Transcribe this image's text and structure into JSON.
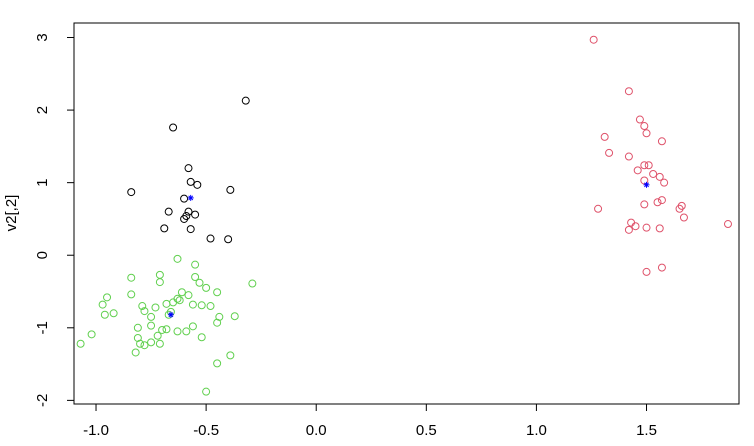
{
  "chart_data": {
    "type": "scatter",
    "title": "",
    "xlabel": "",
    "ylabel": "v2[,2]",
    "xlim": [
      -1.1,
      1.92
    ],
    "ylim": [
      -2.05,
      3.2
    ],
    "x_ticks": [
      -1.0,
      -0.5,
      0.0,
      0.5,
      1.0,
      1.5
    ],
    "x_tick_labels": [
      "-1.0",
      "-0.5",
      "0.0",
      "0.5",
      "1.0",
      "1.5"
    ],
    "y_ticks": [
      -2,
      -1,
      0,
      1,
      2,
      3
    ],
    "y_tick_labels": [
      "-2",
      "-1",
      "0",
      "1",
      "2",
      "3"
    ],
    "grid": false,
    "legend": "none",
    "series": [
      {
        "color": "#000000",
        "marker": "circle-open",
        "points": [
          [
            -0.32,
            2.13
          ],
          [
            -0.65,
            1.76
          ],
          [
            -0.58,
            1.2
          ],
          [
            -0.57,
            1.01
          ],
          [
            -0.54,
            0.97
          ],
          [
            -0.39,
            0.9
          ],
          [
            -0.84,
            0.87
          ],
          [
            -0.6,
            0.78
          ],
          [
            -0.58,
            0.6
          ],
          [
            -0.59,
            0.54
          ],
          [
            -0.55,
            0.56
          ],
          [
            -0.6,
            0.5
          ],
          [
            -0.67,
            0.6
          ],
          [
            -0.69,
            0.37
          ],
          [
            -0.57,
            0.36
          ],
          [
            -0.48,
            0.23
          ],
          [
            -0.4,
            0.22
          ]
        ]
      },
      {
        "color": "#df536b",
        "marker": "circle-open",
        "points": [
          [
            1.26,
            2.97
          ],
          [
            1.42,
            2.26
          ],
          [
            1.47,
            1.87
          ],
          [
            1.49,
            1.78
          ],
          [
            1.31,
            1.63
          ],
          [
            1.5,
            1.68
          ],
          [
            1.57,
            1.57
          ],
          [
            1.33,
            1.41
          ],
          [
            1.42,
            1.36
          ],
          [
            1.49,
            1.24
          ],
          [
            1.51,
            1.24
          ],
          [
            1.46,
            1.17
          ],
          [
            1.53,
            1.12
          ],
          [
            1.56,
            1.08
          ],
          [
            1.49,
            1.03
          ],
          [
            1.58,
            1.0
          ],
          [
            1.28,
            0.64
          ],
          [
            1.49,
            0.7
          ],
          [
            1.55,
            0.73
          ],
          [
            1.57,
            0.76
          ],
          [
            1.65,
            0.64
          ],
          [
            1.66,
            0.68
          ],
          [
            1.67,
            0.52
          ],
          [
            1.43,
            0.45
          ],
          [
            1.45,
            0.4
          ],
          [
            1.42,
            0.35
          ],
          [
            1.5,
            0.38
          ],
          [
            1.56,
            0.37
          ],
          [
            1.87,
            0.43
          ],
          [
            1.57,
            -0.17
          ],
          [
            1.5,
            -0.23
          ]
        ]
      },
      {
        "color": "#61d04f",
        "marker": "circle-open",
        "points": [
          [
            -0.63,
            -0.05
          ],
          [
            -0.55,
            -0.13
          ],
          [
            -0.71,
            -0.27
          ],
          [
            -0.55,
            -0.3
          ],
          [
            -0.84,
            -0.31
          ],
          [
            -0.71,
            -0.37
          ],
          [
            -0.53,
            -0.38
          ],
          [
            -0.29,
            -0.39
          ],
          [
            -0.5,
            -0.45
          ],
          [
            -0.61,
            -0.51
          ],
          [
            -0.58,
            -0.55
          ],
          [
            -0.45,
            -0.51
          ],
          [
            -0.95,
            -0.58
          ],
          [
            -0.84,
            -0.54
          ],
          [
            -0.63,
            -0.6
          ],
          [
            -0.62,
            -0.62
          ],
          [
            -0.65,
            -0.65
          ],
          [
            -0.68,
            -0.67
          ],
          [
            -0.56,
            -0.68
          ],
          [
            -0.52,
            -0.69
          ],
          [
            -0.48,
            -0.7
          ],
          [
            -0.73,
            -0.72
          ],
          [
            -0.79,
            -0.7
          ],
          [
            -0.97,
            -0.68
          ],
          [
            -0.66,
            -0.78
          ],
          [
            -0.78,
            -0.77
          ],
          [
            -0.92,
            -0.8
          ],
          [
            -0.96,
            -0.82
          ],
          [
            -0.67,
            -0.82
          ],
          [
            -0.75,
            -0.85
          ],
          [
            -0.44,
            -0.85
          ],
          [
            -0.37,
            -0.84
          ],
          [
            -0.56,
            -0.98
          ],
          [
            -0.75,
            -0.97
          ],
          [
            -0.81,
            -1.0
          ],
          [
            -0.45,
            -0.93
          ],
          [
            -0.7,
            -1.03
          ],
          [
            -0.68,
            -1.02
          ],
          [
            -0.63,
            -1.05
          ],
          [
            -0.59,
            -1.05
          ],
          [
            -1.02,
            -1.09
          ],
          [
            -0.72,
            -1.11
          ],
          [
            -0.81,
            -1.14
          ],
          [
            -0.52,
            -1.13
          ],
          [
            -0.8,
            -1.22
          ],
          [
            -0.75,
            -1.2
          ],
          [
            -0.71,
            -1.22
          ],
          [
            -0.78,
            -1.24
          ],
          [
            -1.07,
            -1.22
          ],
          [
            -0.82,
            -1.34
          ],
          [
            -0.39,
            -1.38
          ],
          [
            -0.45,
            -1.49
          ],
          [
            -0.5,
            -1.88
          ]
        ]
      },
      {
        "color": "#0000ff",
        "marker": "asterisk",
        "points": [
          [
            -0.57,
            0.79
          ],
          [
            1.5,
            0.97
          ],
          [
            -0.66,
            -0.82
          ]
        ]
      }
    ]
  }
}
